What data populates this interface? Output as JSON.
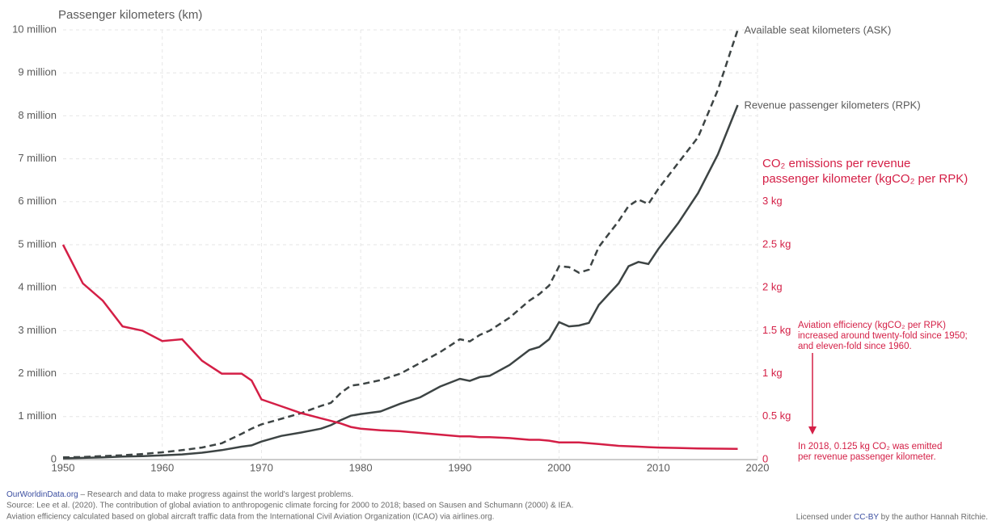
{
  "chart_data": {
    "type": "line",
    "title": "Passenger kilometers (km)",
    "y2_label": [
      "CO₂ emissions per revenue",
      "passenger kilometer (kgCO₂ per RPK)"
    ],
    "x": [
      1950,
      1952,
      1954,
      1956,
      1958,
      1960,
      1962,
      1964,
      1966,
      1968,
      1969,
      1970,
      1972,
      1974,
      1976,
      1977,
      1978,
      1979,
      1980,
      1982,
      1984,
      1986,
      1988,
      1990,
      1991,
      1992,
      1993,
      1995,
      1997,
      1998,
      1999,
      2000,
      2001,
      2002,
      2003,
      2004,
      2005,
      2006,
      2007,
      2008,
      2009,
      2010,
      2012,
      2014,
      2016,
      2018
    ],
    "xlim": [
      1950,
      2020
    ],
    "xticks": [
      1950,
      1960,
      1970,
      1980,
      1990,
      2000,
      2010,
      2020
    ],
    "ylim": [
      0,
      10000000
    ],
    "yticks": [
      0,
      {
        "value": 1000000,
        "label": "1 million"
      },
      {
        "value": 2000000,
        "label": "2 million"
      },
      {
        "value": 3000000,
        "label": "3 million"
      },
      {
        "value": 4000000,
        "label": "4 million"
      },
      {
        "value": 5000000,
        "label": "5 million"
      },
      {
        "value": 6000000,
        "label": "6 million"
      },
      {
        "value": 7000000,
        "label": "7 million"
      },
      {
        "value": 8000000,
        "label": "8 million"
      },
      {
        "value": 9000000,
        "label": "9 million"
      },
      {
        "value": 10000000,
        "label": "10 million"
      }
    ],
    "y2lim": [
      0,
      5
    ],
    "y2ticks": [
      0,
      {
        "value": 0.5,
        "label": "0.5 kg"
      },
      {
        "value": 1,
        "label": "1 kg"
      },
      {
        "value": 1.5,
        "label": "1.5 kg"
      },
      {
        "value": 2,
        "label": "2 kg"
      },
      {
        "value": 2.5,
        "label": "2.5 kg"
      },
      {
        "value": 3,
        "label": "3 kg"
      }
    ],
    "grid": true,
    "series": [
      {
        "name": "Available seat kilometers (ASK)",
        "color": "#3d4444",
        "dashed": true,
        "values": [
          50000,
          60000,
          80000,
          100000,
          130000,
          170000,
          220000,
          280000,
          380000,
          600000,
          720000,
          820000,
          950000,
          1080000,
          1250000,
          1320000,
          1550000,
          1720000,
          1750000,
          1850000,
          2000000,
          2250000,
          2500000,
          2800000,
          2750000,
          2900000,
          3000000,
          3300000,
          3700000,
          3850000,
          4050000,
          4500000,
          4480000,
          4350000,
          4420000,
          4950000,
          5250000,
          5550000,
          5900000,
          6050000,
          5950000,
          6300000,
          6900000,
          7500000,
          8600000,
          10000000
        ]
      },
      {
        "name": "Revenue passenger kilometers (RPK)",
        "color": "#3d4444",
        "dashed": false,
        "values": [
          30000,
          40000,
          50000,
          70000,
          80000,
          100000,
          120000,
          160000,
          220000,
          300000,
          330000,
          420000,
          550000,
          630000,
          720000,
          800000,
          920000,
          1020000,
          1060000,
          1120000,
          1300000,
          1450000,
          1700000,
          1880000,
          1830000,
          1920000,
          1950000,
          2200000,
          2550000,
          2620000,
          2800000,
          3200000,
          3100000,
          3120000,
          3180000,
          3600000,
          3850000,
          4100000,
          4500000,
          4600000,
          4550000,
          4900000,
          5500000,
          6200000,
          7100000,
          8250000
        ]
      },
      {
        "name": "CO₂ emissions per revenue passenger kilometer",
        "color": "#d41f46",
        "dashed": false,
        "axis": "y2",
        "values": [
          2.5,
          2.05,
          1.85,
          1.55,
          1.5,
          1.38,
          1.4,
          1.15,
          1.0,
          1.0,
          0.92,
          0.7,
          0.62,
          0.54,
          0.48,
          0.45,
          0.42,
          0.38,
          0.36,
          0.34,
          0.33,
          0.31,
          0.29,
          0.27,
          0.27,
          0.26,
          0.26,
          0.25,
          0.23,
          0.23,
          0.22,
          0.2,
          0.2,
          0.2,
          0.19,
          0.18,
          0.17,
          0.16,
          0.155,
          0.15,
          0.145,
          0.14,
          0.135,
          0.13,
          0.127,
          0.125
        ]
      }
    ],
    "annotations": [
      [
        "Aviation efficiency (kgCO₂ per RPK)",
        "increased around twenty-fold since 1950;",
        "and eleven-fold since 1960."
      ],
      [
        "In 2018, 0.125 kg CO₂ was emitted",
        "per revenue passenger kilometer."
      ]
    ],
    "footer": {
      "brand": "OurWorldinData.org",
      "tagline": " – Research and data to make progress against the world's largest problems.",
      "source": "Source: Lee et al. (2020). The contribution of global aviation to anthropogenic climate forcing for 2000 to 2018; based on Sausen and Schumann (2000) & IEA.",
      "note": "Aviation efficiency calculated based on global aircraft traffic data from the International Civil Aviation Organization (ICAO) via airlines.org.",
      "license": [
        "Licensed under ",
        "CC-BY",
        " by the author Hannah Ritchie."
      ]
    }
  }
}
